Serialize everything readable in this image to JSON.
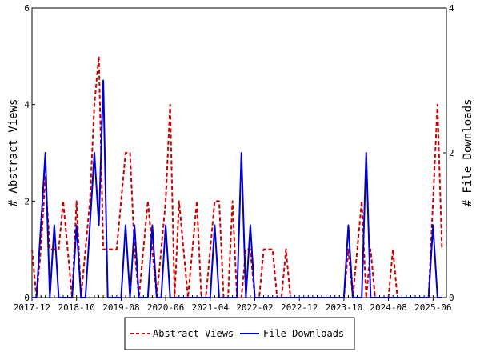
{
  "chart_data": {
    "type": "line",
    "x_label_ticks": [
      "2017-12",
      "2018-10",
      "2019-08",
      "2020-06",
      "2021-04",
      "2022-02",
      "2022-12",
      "2023-10",
      "2024-08",
      "2025-06"
    ],
    "y_left": {
      "label": "# Abstract Views",
      "ylim": [
        0,
        6
      ],
      "ticks": [
        "0",
        "2",
        "4",
        "6"
      ]
    },
    "y_right": {
      "label": "# File Downloads",
      "ylim": [
        0,
        4
      ],
      "ticks": [
        "0",
        "2",
        "4"
      ]
    },
    "x_range_months": [
      0,
      93
    ],
    "legend": {
      "placement": "bottom-center"
    },
    "series": [
      {
        "name": "Abstract Views",
        "axis": "left",
        "color": "#cc0000",
        "style": "dashed",
        "points": [
          [
            0,
            1
          ],
          [
            1,
            0
          ],
          [
            2,
            1
          ],
          [
            3,
            2.5
          ],
          [
            4,
            1
          ],
          [
            5,
            1
          ],
          [
            6,
            1
          ],
          [
            7,
            2
          ],
          [
            8,
            1
          ],
          [
            9,
            0
          ],
          [
            10,
            2
          ],
          [
            11,
            0
          ],
          [
            12,
            1
          ],
          [
            13,
            2
          ],
          [
            14,
            4
          ],
          [
            15,
            5
          ],
          [
            16,
            1
          ],
          [
            17,
            1
          ],
          [
            18,
            1
          ],
          [
            19,
            1
          ],
          [
            20,
            2
          ],
          [
            21,
            3
          ],
          [
            22,
            3
          ],
          [
            23,
            1
          ],
          [
            24,
            0
          ],
          [
            25,
            1
          ],
          [
            26,
            2
          ],
          [
            27,
            1
          ],
          [
            28,
            0
          ],
          [
            29,
            1
          ],
          [
            30,
            2
          ],
          [
            31,
            4
          ],
          [
            32,
            0
          ],
          [
            33,
            2
          ],
          [
            34,
            1
          ],
          [
            35,
            0
          ],
          [
            36,
            1
          ],
          [
            37,
            2
          ],
          [
            38,
            0
          ],
          [
            39,
            0
          ],
          [
            40,
            1
          ],
          [
            41,
            2
          ],
          [
            42,
            2
          ],
          [
            43,
            0
          ],
          [
            44,
            0
          ],
          [
            45,
            2
          ],
          [
            46,
            0
          ],
          [
            47,
            0
          ],
          [
            48,
            1
          ],
          [
            49,
            1
          ],
          [
            50,
            0
          ],
          [
            51,
            0
          ],
          [
            52,
            1
          ],
          [
            53,
            1
          ],
          [
            54,
            1
          ],
          [
            55,
            0
          ],
          [
            56,
            0
          ],
          [
            57,
            1
          ],
          [
            58,
            0
          ],
          [
            59,
            0
          ],
          [
            60,
            0
          ],
          [
            61,
            0
          ],
          [
            62,
            0
          ],
          [
            63,
            0
          ],
          [
            64,
            0
          ],
          [
            65,
            0
          ],
          [
            66,
            0
          ],
          [
            67,
            0
          ],
          [
            68,
            0
          ],
          [
            69,
            0
          ],
          [
            70,
            0
          ],
          [
            71,
            1
          ],
          [
            72,
            0
          ],
          [
            73,
            1
          ],
          [
            74,
            2
          ],
          [
            75,
            0
          ],
          [
            76,
            1
          ],
          [
            77,
            0
          ],
          [
            78,
            0
          ],
          [
            79,
            0
          ],
          [
            80,
            0
          ],
          [
            81,
            1
          ],
          [
            82,
            0
          ],
          [
            83,
            0
          ],
          [
            84,
            0
          ],
          [
            85,
            0
          ],
          [
            86,
            0
          ],
          [
            87,
            0
          ],
          [
            88,
            0
          ],
          [
            89,
            0
          ],
          [
            90,
            2
          ],
          [
            91,
            4
          ],
          [
            92,
            1
          ]
        ]
      },
      {
        "name": "File Downloads",
        "axis": "right",
        "color": "#0000cc",
        "style": "solid",
        "points": [
          [
            0,
            0
          ],
          [
            1,
            0
          ],
          [
            2,
            1
          ],
          [
            3,
            2
          ],
          [
            4,
            0
          ],
          [
            5,
            1
          ],
          [
            6,
            0
          ],
          [
            7,
            0
          ],
          [
            8,
            0
          ],
          [
            9,
            0
          ],
          [
            10,
            1
          ],
          [
            11,
            0
          ],
          [
            12,
            0
          ],
          [
            13,
            1
          ],
          [
            14,
            2
          ],
          [
            15,
            1
          ],
          [
            16,
            3
          ],
          [
            17,
            0
          ],
          [
            18,
            0
          ],
          [
            19,
            0
          ],
          [
            20,
            0
          ],
          [
            21,
            1
          ],
          [
            22,
            0
          ],
          [
            23,
            1
          ],
          [
            24,
            0
          ],
          [
            25,
            0
          ],
          [
            26,
            0
          ],
          [
            27,
            1
          ],
          [
            28,
            0
          ],
          [
            29,
            0
          ],
          [
            30,
            1
          ],
          [
            31,
            0
          ],
          [
            32,
            0
          ],
          [
            33,
            0
          ],
          [
            34,
            0
          ],
          [
            35,
            0
          ],
          [
            36,
            0
          ],
          [
            37,
            0
          ],
          [
            38,
            0
          ],
          [
            39,
            0
          ],
          [
            40,
            0
          ],
          [
            41,
            1
          ],
          [
            42,
            0
          ],
          [
            43,
            0
          ],
          [
            44,
            0
          ],
          [
            45,
            0
          ],
          [
            46,
            0
          ],
          [
            47,
            2
          ],
          [
            48,
            0
          ],
          [
            49,
            1
          ],
          [
            50,
            0
          ],
          [
            51,
            0
          ],
          [
            52,
            0
          ],
          [
            53,
            0
          ],
          [
            54,
            0
          ],
          [
            55,
            0
          ],
          [
            56,
            0
          ],
          [
            57,
            0
          ],
          [
            58,
            0
          ],
          [
            59,
            0
          ],
          [
            60,
            0
          ],
          [
            61,
            0
          ],
          [
            62,
            0
          ],
          [
            63,
            0
          ],
          [
            64,
            0
          ],
          [
            65,
            0
          ],
          [
            66,
            0
          ],
          [
            67,
            0
          ],
          [
            68,
            0
          ],
          [
            69,
            0
          ],
          [
            70,
            0
          ],
          [
            71,
            1
          ],
          [
            72,
            0
          ],
          [
            73,
            0
          ],
          [
            74,
            0
          ],
          [
            75,
            2
          ],
          [
            76,
            0
          ],
          [
            77,
            0
          ],
          [
            78,
            0
          ],
          [
            79,
            0
          ],
          [
            80,
            0
          ],
          [
            81,
            0
          ],
          [
            82,
            0
          ],
          [
            83,
            0
          ],
          [
            84,
            0
          ],
          [
            85,
            0
          ],
          [
            86,
            0
          ],
          [
            87,
            0
          ],
          [
            88,
            0
          ],
          [
            89,
            0
          ],
          [
            90,
            1
          ],
          [
            91,
            0
          ],
          [
            92,
            0
          ]
        ]
      }
    ]
  }
}
